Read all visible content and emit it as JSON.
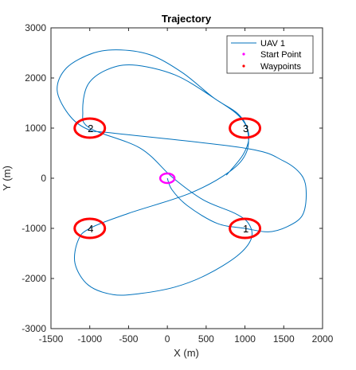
{
  "chart_data": {
    "type": "line",
    "title": "Trajectory",
    "xlabel": "X (m)",
    "ylabel": "Y (m)",
    "xlim": [
      -1500,
      2000
    ],
    "ylim": [
      -3000,
      3000
    ],
    "xticks": [
      -1500,
      -1000,
      -500,
      0,
      500,
      1000,
      1500,
      2000
    ],
    "yticks": [
      -3000,
      -2000,
      -1000,
      0,
      1000,
      2000,
      3000
    ],
    "xtick_labels": [
      "-1500",
      "-1000",
      "-500",
      "0",
      "500",
      "1000",
      "1500",
      "2000"
    ],
    "ytick_labels": [
      "-3000",
      "-2000",
      "-1000",
      "0",
      "1000",
      "2000",
      "3000"
    ],
    "grid": false,
    "legend": {
      "position": "top-right",
      "entries": [
        {
          "label": "UAV 1",
          "marker": "line",
          "color": "#0072BD"
        },
        {
          "label": "Start Point",
          "marker": "dot",
          "color": "#FF00FF"
        },
        {
          "label": "Waypoints",
          "marker": "dot",
          "color": "#FF0000"
        }
      ]
    },
    "series": [
      {
        "name": "UAV 1",
        "color": "#0072BD",
        "points": [
          [
            0,
            0
          ],
          [
            60,
            -230
          ],
          [
            260,
            -550
          ],
          [
            640,
            -900
          ],
          [
            1000,
            -1000
          ],
          [
            1300,
            -1070
          ],
          [
            1540,
            -970
          ],
          [
            1740,
            -740
          ],
          [
            1790,
            -300
          ],
          [
            1730,
            60
          ],
          [
            1490,
            350
          ],
          [
            1000,
            600
          ],
          [
            -700,
            900
          ],
          [
            -1000,
            960
          ],
          [
            -1250,
            1230
          ],
          [
            -1420,
            1750
          ],
          [
            -1300,
            2200
          ],
          [
            -950,
            2500
          ],
          [
            -600,
            2560
          ],
          [
            -200,
            2450
          ],
          [
            200,
            2100
          ],
          [
            600,
            1600
          ],
          [
            900,
            1300
          ],
          [
            1030,
            980
          ],
          [
            1020,
            520
          ],
          [
            800,
            130
          ],
          [
            290,
            -300
          ],
          [
            -500,
            -700
          ],
          [
            -1000,
            -1000
          ],
          [
            -1150,
            -1240
          ],
          [
            -1190,
            -1700
          ],
          [
            -1020,
            -2130
          ],
          [
            -700,
            -2320
          ],
          [
            -350,
            -2300
          ],
          [
            100,
            -2170
          ],
          [
            500,
            -1930
          ],
          [
            900,
            -1550
          ],
          [
            1080,
            -1210
          ],
          [
            1050,
            -910
          ],
          [
            870,
            -700
          ],
          [
            460,
            -430
          ],
          [
            70,
            10
          ],
          [
            -350,
            600
          ],
          [
            -1000,
            1000
          ],
          [
            -1090,
            1330
          ],
          [
            -1030,
            1850
          ],
          [
            -800,
            2150
          ],
          [
            -450,
            2260
          ],
          [
            100,
            2060
          ],
          [
            620,
            1580
          ],
          [
            930,
            1230
          ],
          [
            1050,
            870
          ],
          [
            980,
            480
          ],
          [
            760,
            60
          ]
        ]
      }
    ],
    "start_point": {
      "label": "Start Point",
      "x": 0,
      "y": 0,
      "color": "#FF00FF"
    },
    "waypoints": [
      {
        "label": "1",
        "x": 1000,
        "y": -1000,
        "color": "#FF0000"
      },
      {
        "label": "2",
        "x": -1000,
        "y": 1000,
        "color": "#FF0000"
      },
      {
        "label": "3",
        "x": 1000,
        "y": 1000,
        "color": "#FF0000"
      },
      {
        "label": "4",
        "x": -1000,
        "y": -1000,
        "color": "#FF0000"
      }
    ]
  }
}
